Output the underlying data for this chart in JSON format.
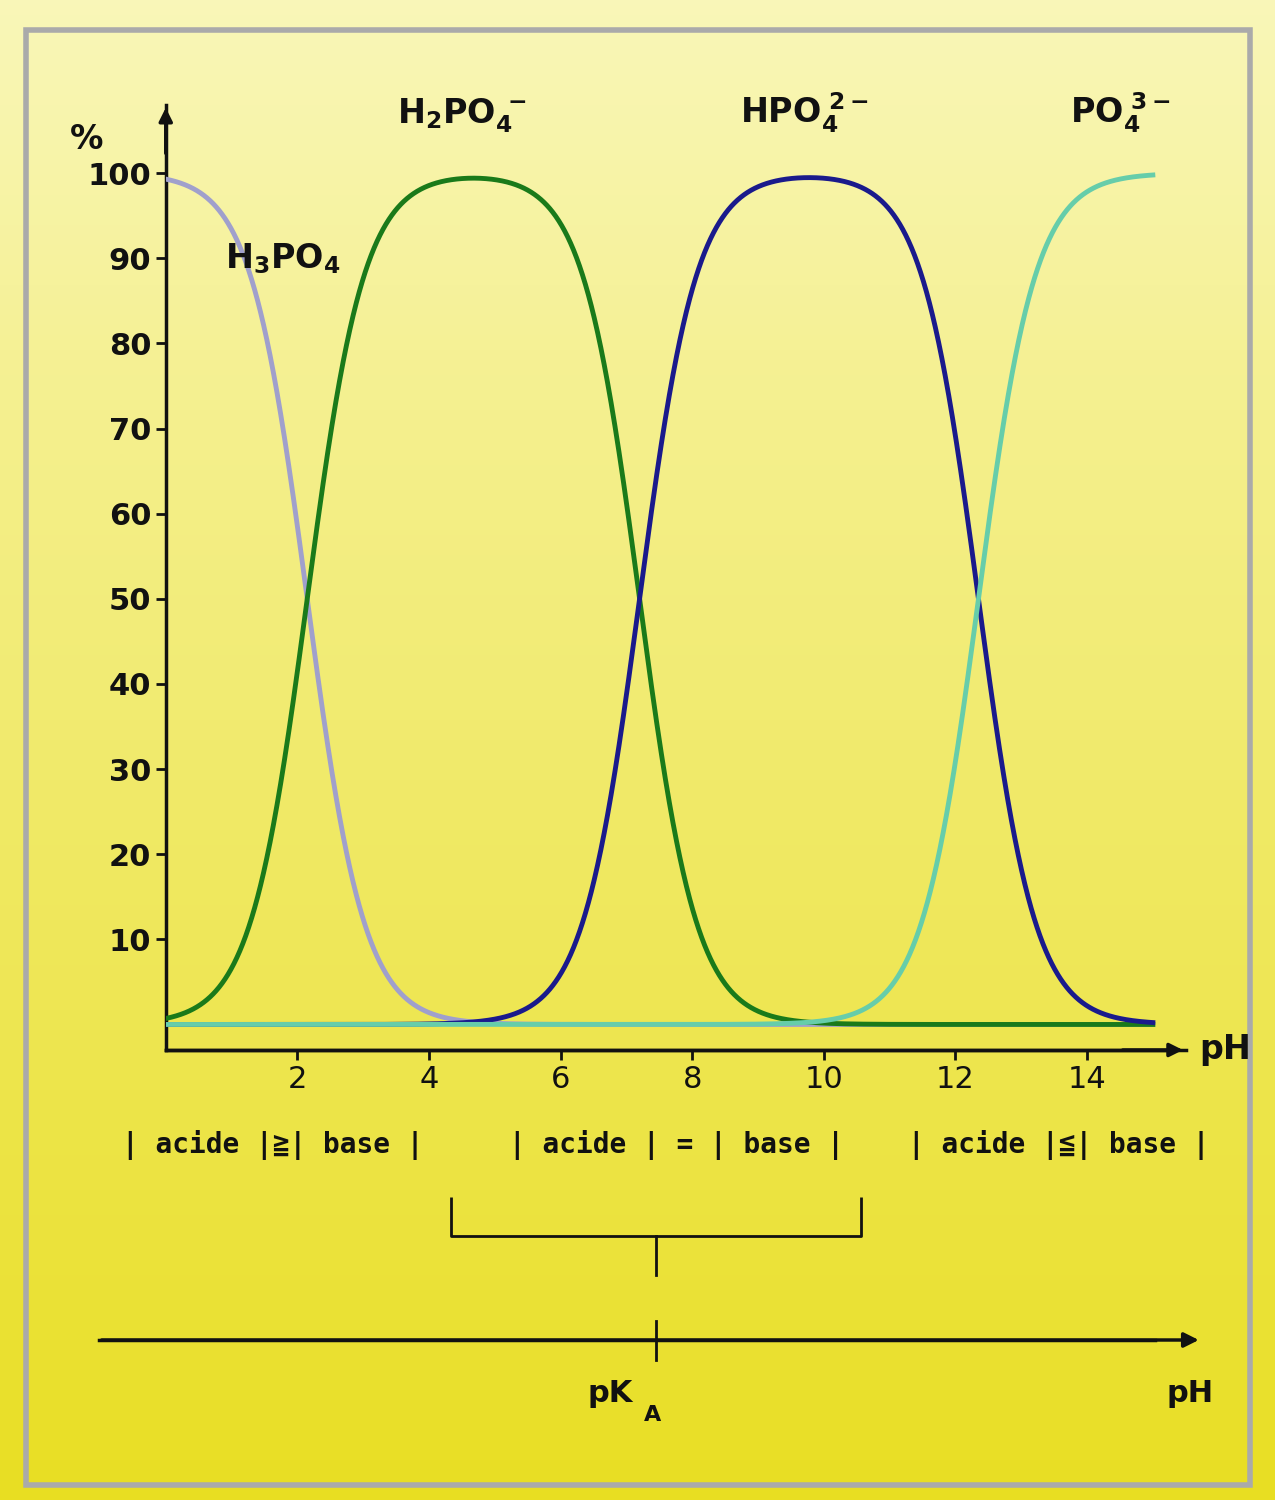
{
  "pka1": 2.15,
  "pka2": 7.2,
  "pka3": 12.35,
  "curve_colors": {
    "H3PO4": "#a0a0cc",
    "H2PO4": "#1a7a1a",
    "HPO4": "#1a1a8c",
    "PO4": "#66cdaa"
  },
  "curve_linewidth": 3.5,
  "axis_color": "#111111",
  "label_color": "#111111",
  "bg_color_top": "#f5f0b0",
  "bg_color_bottom": "#e8d820",
  "border_color": "#aaaaaa",
  "yticks": [
    10,
    20,
    30,
    40,
    50,
    60,
    70,
    80,
    90,
    100
  ],
  "xticks": [
    2,
    4,
    6,
    8,
    10,
    12,
    14
  ],
  "tick_fontsize": 22,
  "label_fontsize": 24,
  "formula_fontsize": 24,
  "bottom_fontsize": 20,
  "pka_fontsize": 22
}
